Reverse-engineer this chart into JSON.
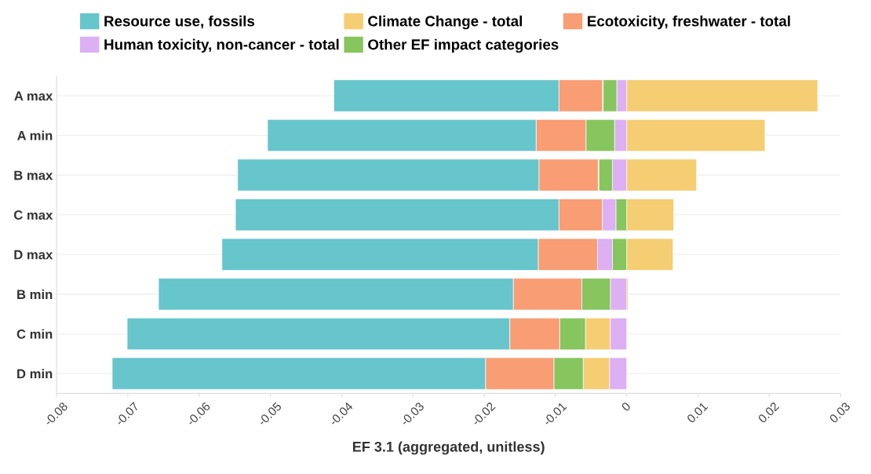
{
  "chart_data": {
    "type": "bar",
    "orientation": "horizontal",
    "xlabel": "EF 3.1 (aggregated, unitless)",
    "categories": [
      "A max",
      "A min",
      "B max",
      "C max",
      "D max",
      "B min",
      "C min",
      "D min"
    ],
    "series": [
      {
        "name": "Resource use, fossils",
        "color": "#67c5cc",
        "base": [
          -0.0095,
          -0.0127,
          -0.0123,
          -0.0095,
          -0.0124,
          -0.0159,
          -0.0164,
          -0.0198
        ],
        "values": [
          -0.0316,
          -0.0377,
          -0.0423,
          -0.0454,
          -0.0444,
          -0.0498,
          -0.0537,
          -0.0524
        ]
      },
      {
        "name": "Climate Change - total",
        "color": "#f5cd72",
        "base": [
          0,
          0,
          0,
          0,
          0,
          0,
          -0.0023,
          -0.0024
        ],
        "values": [
          0.0268,
          0.0194,
          0.0098,
          0.0066,
          0.0065,
          0.0002,
          -0.0035,
          -0.0037
        ]
      },
      {
        "name": "Ecotoxicity, freshwater - total",
        "color": "#f89d74",
        "base": [
          -0.0034,
          -0.0057,
          -0.004,
          -0.0034,
          -0.0041,
          -0.0063,
          -0.0094,
          -0.0102
        ],
        "values": [
          -0.0061,
          -0.007,
          -0.0083,
          -0.0061,
          -0.0083,
          -0.0096,
          -0.007,
          -0.0096
        ]
      },
      {
        "name": "Human toxicity, non-cancer - total",
        "color": "#dcb0f2",
        "base": [
          0,
          0,
          0,
          -0.0015,
          -0.002,
          0,
          0,
          0
        ],
        "values": [
          -0.0014,
          -0.0017,
          -0.002,
          -0.0019,
          -0.0021,
          -0.0023,
          -0.0023,
          -0.0024
        ]
      },
      {
        "name": "Other EF impact categories",
        "color": "#87c55f",
        "base": [
          -0.0014,
          -0.0017,
          -0.002,
          0,
          0,
          -0.0023,
          -0.0058,
          -0.0061
        ],
        "values": [
          -0.0019,
          -0.004,
          -0.0019,
          -0.0015,
          -0.002,
          -0.004,
          -0.0036,
          -0.0041
        ]
      }
    ],
    "xlim": [
      -0.08,
      0.03
    ],
    "xticks": [
      -0.08,
      -0.07,
      -0.06,
      -0.05,
      -0.04,
      -0.03,
      -0.02,
      -0.01,
      0,
      0.01,
      0.02,
      0.03
    ],
    "grid": "y",
    "legend": "top"
  }
}
